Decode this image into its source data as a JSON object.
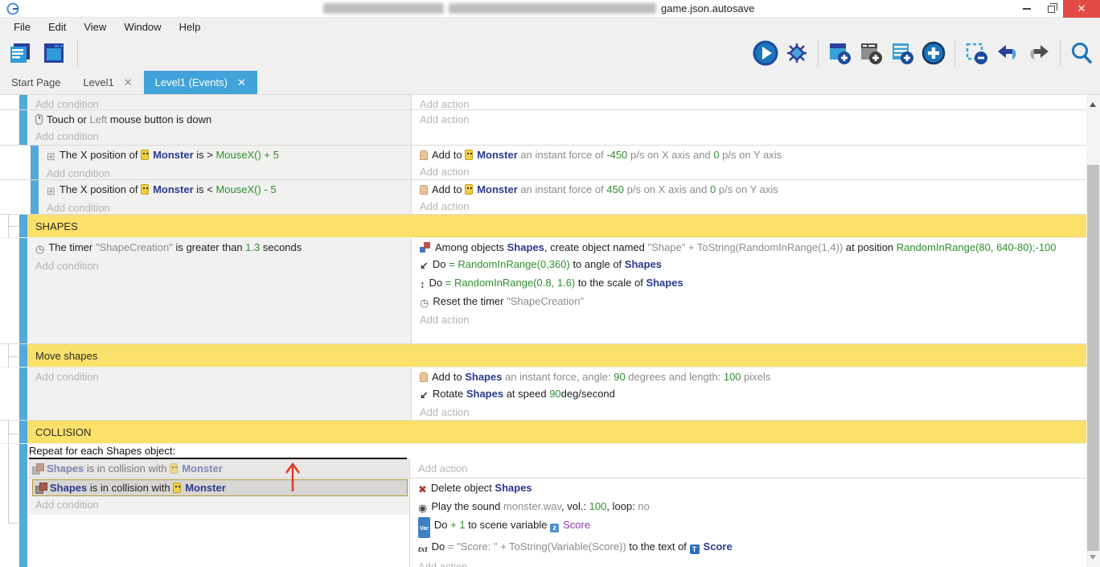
{
  "window": {
    "title": "game.json.autosave",
    "controls": [
      "minimize",
      "restore",
      "close"
    ]
  },
  "menu": {
    "items": [
      "File",
      "Edit",
      "View",
      "Window",
      "Help"
    ]
  },
  "toolbar": {
    "left_icons": [
      "project-manager",
      "scene-editor"
    ],
    "right_icons": [
      "preview-play",
      "debug-bug",
      "add-event",
      "add-subevent",
      "add-comment",
      "add-other",
      "delete-selection",
      "undo",
      "redo",
      "search"
    ]
  },
  "tabs": [
    {
      "label": "Start Page",
      "active": false
    },
    {
      "label": "Level1",
      "active": false,
      "closable": true
    },
    {
      "label": "Level1 (Events)",
      "active": true,
      "closable": true
    }
  ],
  "ph": {
    "cond": "Add condition",
    "act": "Add action"
  },
  "groups": {
    "shapes": "SHAPES",
    "move": "Move shapes",
    "collision": "COLLISION"
  },
  "colors": {
    "accent_blue": "#41a3da",
    "event_bar_blue": "#53a9d8",
    "group_header_yellow": "#fbe06a",
    "expression_green": "#2f8f2f",
    "object_blue": "#2a3b8f",
    "variable_purple": "#8f36b5",
    "close_red": "#e14b44",
    "annotation_red": "#e0392e",
    "selection_border": "#b59a3c"
  },
  "annotation": {
    "shape": "up-arrow",
    "color": "#e0392e"
  },
  "events": {
    "touch": {
      "cond": [
        {
          "icon": "mouse"
        },
        {
          "t": "Touch or "
        },
        {
          "t": "Left",
          "c": "param"
        },
        {
          "t": " mouse button is down"
        }
      ]
    },
    "xgt": {
      "cond": [
        {
          "icon": "position"
        },
        {
          "t": "The X position of "
        },
        {
          "icon": "monster"
        },
        {
          "t": "Monster",
          "c": "obj"
        },
        {
          "t": " is > "
        },
        {
          "t": "MouseX() + 5",
          "c": "expr"
        }
      ],
      "act": [
        {
          "icon": "force"
        },
        {
          "t": "Add to "
        },
        {
          "icon": "monster"
        },
        {
          "t": "Monster",
          "c": "obj"
        },
        {
          "t": " an instant force of ",
          "c": "param"
        },
        {
          "t": "-450",
          "c": "expr"
        },
        {
          "t": " p/s on X axis and ",
          "c": "param"
        },
        {
          "t": "0",
          "c": "expr"
        },
        {
          "t": " p/s on Y axis",
          "c": "param"
        }
      ]
    },
    "xlt": {
      "cond": [
        {
          "icon": "position"
        },
        {
          "t": "The X position of "
        },
        {
          "icon": "monster"
        },
        {
          "t": "Monster",
          "c": "obj"
        },
        {
          "t": " is < "
        },
        {
          "t": "MouseX() - 5",
          "c": "expr"
        }
      ],
      "act": [
        {
          "icon": "force"
        },
        {
          "t": "Add to "
        },
        {
          "icon": "monster"
        },
        {
          "t": "Monster",
          "c": "obj"
        },
        {
          "t": " an instant force of ",
          "c": "param"
        },
        {
          "t": "450",
          "c": "expr"
        },
        {
          "t": " p/s on X axis and ",
          "c": "param"
        },
        {
          "t": "0",
          "c": "expr"
        },
        {
          "t": " p/s on Y axis",
          "c": "param"
        }
      ]
    },
    "shapes_timer": {
      "cond": [
        {
          "icon": "timer"
        },
        {
          "t": "The timer "
        },
        {
          "t": "\"ShapeCreation\"",
          "c": "param"
        },
        {
          "t": " is greater than "
        },
        {
          "t": "1.3",
          "c": "expr"
        },
        {
          "t": " seconds"
        }
      ],
      "a1": [
        {
          "icon": "create"
        },
        {
          "t": "Among objects "
        },
        {
          "t": "Shapes",
          "c": "obj"
        },
        {
          "t": ", create object named "
        },
        {
          "t": "\"Shape\" + ToString(RandomInRange(1,4))",
          "c": "param"
        },
        {
          "t": " at position "
        },
        {
          "t": "RandomInRange(80, 640-80);-100",
          "c": "expr"
        }
      ],
      "a2": [
        {
          "icon": "angle"
        },
        {
          "t": "Do "
        },
        {
          "t": "= RandomInRange(0,360)",
          "c": "expr"
        },
        {
          "t": " to angle of "
        },
        {
          "t": "Shapes",
          "c": "obj"
        }
      ],
      "a3": [
        {
          "icon": "scale"
        },
        {
          "t": "Do "
        },
        {
          "t": "= RandomInRange(0.8, 1.6)",
          "c": "expr"
        },
        {
          "t": " to the scale of "
        },
        {
          "t": "Shapes",
          "c": "obj"
        }
      ],
      "a4": [
        {
          "icon": "timer"
        },
        {
          "t": "Reset the timer "
        },
        {
          "t": "\"ShapeCreation\"",
          "c": "param"
        }
      ]
    },
    "move": {
      "a1": [
        {
          "icon": "force"
        },
        {
          "t": "Add to "
        },
        {
          "t": "Shapes",
          "c": "obj"
        },
        {
          "t": " an instant force, angle: ",
          "c": "param"
        },
        {
          "t": "90",
          "c": "expr"
        },
        {
          "t": " degrees and length: ",
          "c": "param"
        },
        {
          "t": "100",
          "c": "expr"
        },
        {
          "t": " pixels",
          "c": "param"
        }
      ],
      "a2": [
        {
          "icon": "angle"
        },
        {
          "t": "Rotate "
        },
        {
          "t": "Shapes",
          "c": "obj"
        },
        {
          "t": " at speed "
        },
        {
          "t": "90",
          "c": "expr"
        },
        {
          "t": "deg/second"
        }
      ]
    },
    "foreach": {
      "header": "Repeat for each Shapes object:"
    },
    "collision": {
      "cond": [
        {
          "icon": "collision"
        },
        {
          "t": "Shapes",
          "c": "obj"
        },
        {
          "t": " is in collision with "
        },
        {
          "icon": "monster"
        },
        {
          "t": "Monster",
          "c": "obj"
        }
      ],
      "a1": [
        {
          "icon": "delete"
        },
        {
          "t": "Delete object "
        },
        {
          "t": "Shapes",
          "c": "obj"
        }
      ],
      "a2": [
        {
          "icon": "sound"
        },
        {
          "t": "Play the sound "
        },
        {
          "t": "monster.wav",
          "c": "param"
        },
        {
          "t": ", vol.: "
        },
        {
          "t": "100",
          "c": "expr"
        },
        {
          "t": ", loop: "
        },
        {
          "t": "no",
          "c": "param"
        }
      ],
      "a3": [
        {
          "icon": "var"
        },
        {
          "t": "Do "
        },
        {
          "t": "+ 1",
          "c": "expr"
        },
        {
          "t": " to scene variable "
        },
        {
          "icon": "scenevar"
        },
        {
          "t": "Score",
          "c": "scenevar"
        }
      ],
      "a4": [
        {
          "icon": "txt"
        },
        {
          "t": "Do "
        },
        {
          "t": "= \"Score: \" + ToString(Variable(Score))",
          "c": "param"
        },
        {
          "t": " to the text of "
        },
        {
          "icon": "textobj"
        },
        {
          "t": "Score",
          "c": "obj"
        }
      ]
    }
  }
}
